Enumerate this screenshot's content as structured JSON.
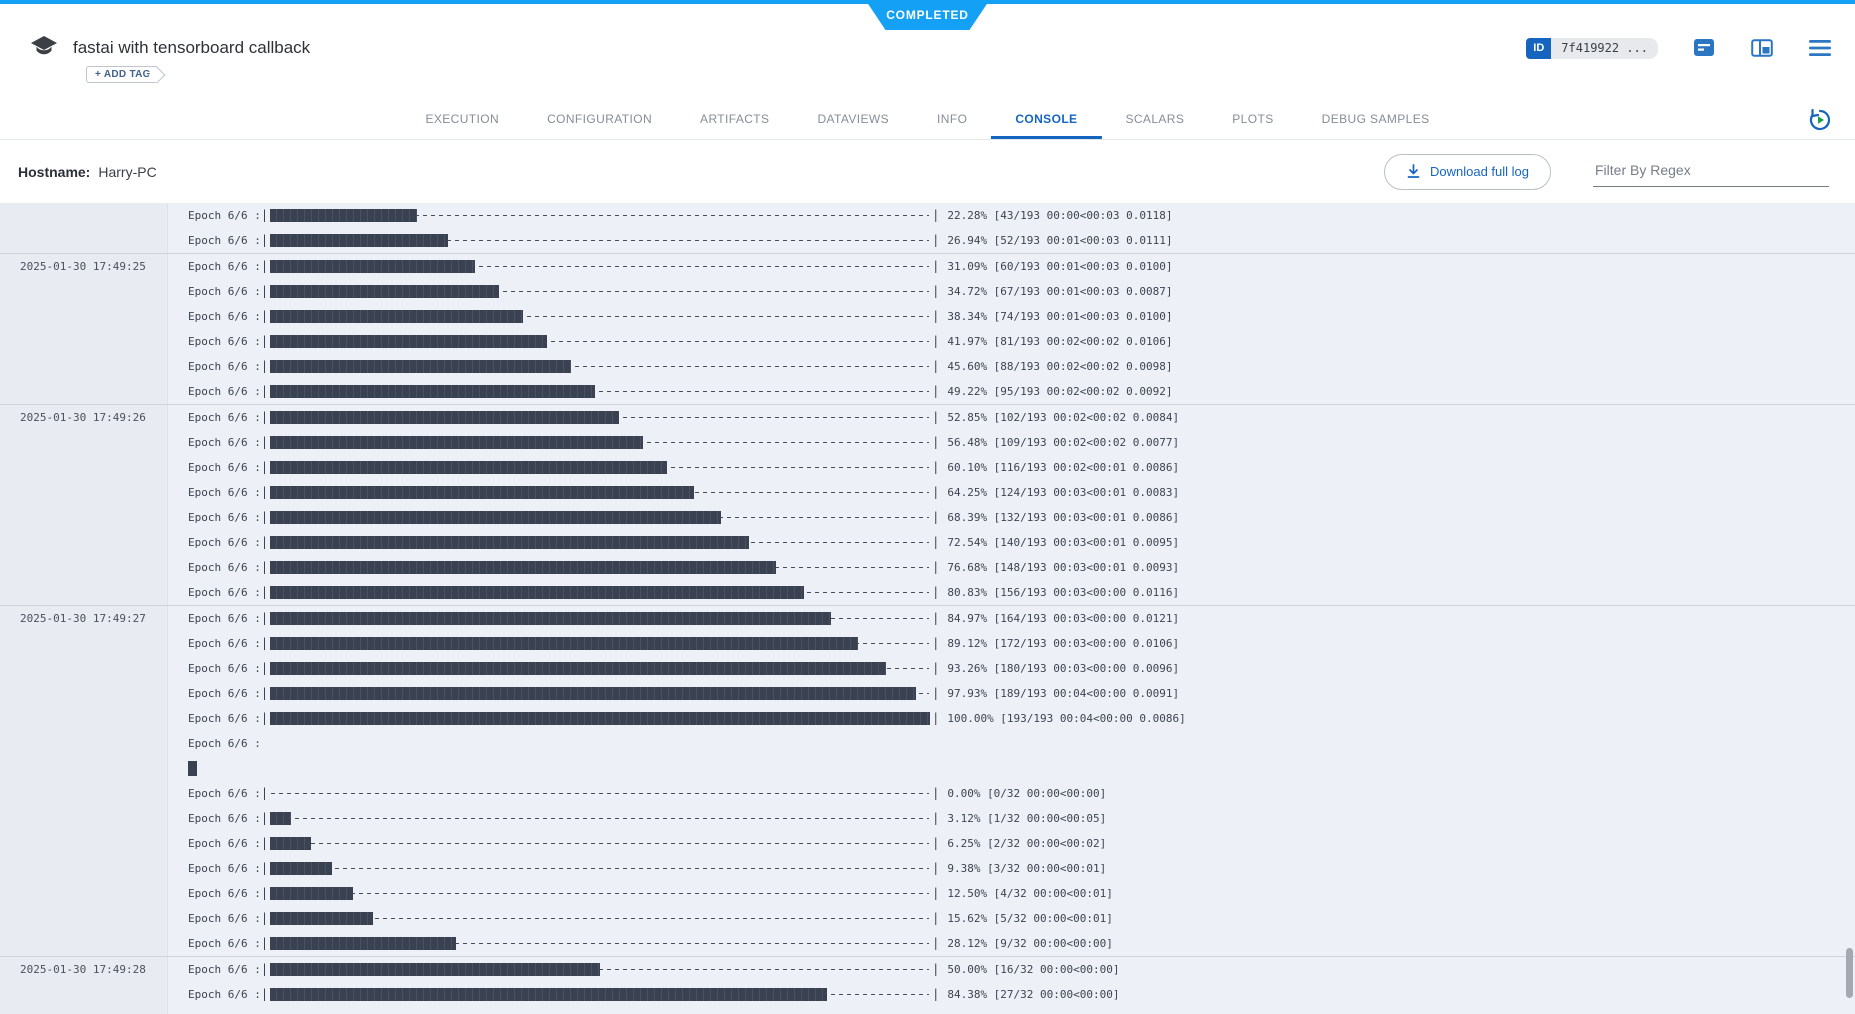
{
  "header": {
    "status": "COMPLETED",
    "title": "fastai with tensorboard callback",
    "add_tag_label": "+ ADD TAG",
    "id_label": "ID",
    "id_value": "7f419922 ...",
    "tabs": [
      {
        "label": "EXECUTION",
        "active": false
      },
      {
        "label": "CONFIGURATION",
        "active": false
      },
      {
        "label": "ARTIFACTS",
        "active": false
      },
      {
        "label": "DATAVIEWS",
        "active": false
      },
      {
        "label": "INFO",
        "active": false
      },
      {
        "label": "CONSOLE",
        "active": true
      },
      {
        "label": "SCALARS",
        "active": false
      },
      {
        "label": "PLOTS",
        "active": false
      },
      {
        "label": "DEBUG SAMPLES",
        "active": false
      }
    ]
  },
  "toolbar": {
    "hostname_label": "Hostname:",
    "hostname_value": "Harry-PC",
    "download_label": "Download full log",
    "filter_placeholder": "Filter By Regex"
  },
  "icons": {
    "logo": "experiment-cap-icon",
    "details": "details-panel-icon",
    "layout": "layout-panel-icon",
    "menu": "hamburger-menu-icon",
    "refresh": "auto-refresh-icon",
    "download": "download-icon"
  },
  "colors": {
    "status_blue": "#14a0f4",
    "accent_blue": "#1565c0",
    "bar_fill": "#3a4150",
    "log_bg": "#edf0f6",
    "gutter_bg": "#e8ebf1",
    "green_play": "#15a04a"
  },
  "console": {
    "groups": [
      {
        "timestamp": "",
        "lines": [
          {
            "kind": "bar",
            "prefix": "Epoch 6/6 : ",
            "pct": 22.28,
            "suffix": "22.28% [43/193 00:00<00:03 0.0118]"
          },
          {
            "kind": "bar",
            "prefix": "Epoch 6/6 : ",
            "pct": 26.94,
            "suffix": "26.94% [52/193 00:01<00:03 0.0111]"
          }
        ]
      },
      {
        "timestamp": "2025-01-30 17:49:25",
        "lines": [
          {
            "kind": "bar",
            "prefix": "Epoch 6/6 : ",
            "pct": 31.09,
            "suffix": "31.09% [60/193 00:01<00:03 0.0100]"
          },
          {
            "kind": "bar",
            "prefix": "Epoch 6/6 : ",
            "pct": 34.72,
            "suffix": "34.72% [67/193 00:01<00:03 0.0087]"
          },
          {
            "kind": "bar",
            "prefix": "Epoch 6/6 : ",
            "pct": 38.34,
            "suffix": "38.34% [74/193 00:01<00:03 0.0100]"
          },
          {
            "kind": "bar",
            "prefix": "Epoch 6/6 : ",
            "pct": 41.97,
            "suffix": "41.97% [81/193 00:02<00:02 0.0106]"
          },
          {
            "kind": "bar",
            "prefix": "Epoch 6/6 : ",
            "pct": 45.6,
            "suffix": "45.60% [88/193 00:02<00:02 0.0098]"
          },
          {
            "kind": "bar",
            "prefix": "Epoch 6/6 : ",
            "pct": 49.22,
            "suffix": "49.22% [95/193 00:02<00:02 0.0092]"
          }
        ]
      },
      {
        "timestamp": "2025-01-30 17:49:26",
        "lines": [
          {
            "kind": "bar",
            "prefix": "Epoch 6/6 : ",
            "pct": 52.85,
            "suffix": "52.85% [102/193 00:02<00:02 0.0084]"
          },
          {
            "kind": "bar",
            "prefix": "Epoch 6/6 : ",
            "pct": 56.48,
            "suffix": "56.48% [109/193 00:02<00:02 0.0077]"
          },
          {
            "kind": "bar",
            "prefix": "Epoch 6/6 : ",
            "pct": 60.1,
            "suffix": "60.10% [116/193 00:02<00:01 0.0086]"
          },
          {
            "kind": "bar",
            "prefix": "Epoch 6/6 : ",
            "pct": 64.25,
            "suffix": "64.25% [124/193 00:03<00:01 0.0083]"
          },
          {
            "kind": "bar",
            "prefix": "Epoch 6/6 : ",
            "pct": 68.39,
            "suffix": "68.39% [132/193 00:03<00:01 0.0086]"
          },
          {
            "kind": "bar",
            "prefix": "Epoch 6/6 : ",
            "pct": 72.54,
            "suffix": "72.54% [140/193 00:03<00:01 0.0095]"
          },
          {
            "kind": "bar",
            "prefix": "Epoch 6/6 : ",
            "pct": 76.68,
            "suffix": "76.68% [148/193 00:03<00:01 0.0093]"
          },
          {
            "kind": "bar",
            "prefix": "Epoch 6/6 : ",
            "pct": 80.83,
            "suffix": "80.83% [156/193 00:03<00:00 0.0116]"
          }
        ]
      },
      {
        "timestamp": "2025-01-30 17:49:27",
        "lines": [
          {
            "kind": "bar",
            "prefix": "Epoch 6/6 : ",
            "pct": 84.97,
            "suffix": "84.97% [164/193 00:03<00:00 0.0121]"
          },
          {
            "kind": "bar",
            "prefix": "Epoch 6/6 : ",
            "pct": 89.12,
            "suffix": "89.12% [172/193 00:03<00:00 0.0106]"
          },
          {
            "kind": "bar",
            "prefix": "Epoch 6/6 : ",
            "pct": 93.26,
            "suffix": "93.26% [180/193 00:03<00:00 0.0096]"
          },
          {
            "kind": "bar",
            "prefix": "Epoch 6/6 : ",
            "pct": 97.93,
            "suffix": "97.93% [189/193 00:04<00:00 0.0091]"
          },
          {
            "kind": "bar",
            "prefix": "Epoch 6/6 : ",
            "pct": 100.0,
            "suffix": "100.00% [193/193 00:04<00:00 0.0086]"
          },
          {
            "kind": "text",
            "prefix": "Epoch 6/6 :"
          },
          {
            "kind": "block"
          },
          {
            "kind": "bar",
            "prefix": "Epoch 6/6 : ",
            "pct": 0.0,
            "suffix": "0.00% [0/32 00:00<00:00]"
          },
          {
            "kind": "bar",
            "prefix": "Epoch 6/6 : ",
            "pct": 3.12,
            "suffix": "3.12% [1/32 00:00<00:05]"
          },
          {
            "kind": "bar",
            "prefix": "Epoch 6/6 : ",
            "pct": 6.25,
            "suffix": "6.25% [2/32 00:00<00:02]"
          },
          {
            "kind": "bar",
            "prefix": "Epoch 6/6 : ",
            "pct": 9.38,
            "suffix": "9.38% [3/32 00:00<00:01]"
          },
          {
            "kind": "bar",
            "prefix": "Epoch 6/6 : ",
            "pct": 12.5,
            "suffix": "12.50% [4/32 00:00<00:01]"
          },
          {
            "kind": "bar",
            "prefix": "Epoch 6/6 : ",
            "pct": 15.62,
            "suffix": "15.62% [5/32 00:00<00:01]"
          },
          {
            "kind": "bar",
            "prefix": "Epoch 6/6 : ",
            "pct": 28.12,
            "suffix": "28.12% [9/32 00:00<00:00]"
          }
        ]
      },
      {
        "timestamp": "2025-01-30 17:49:28",
        "lines": [
          {
            "kind": "bar",
            "prefix": "Epoch 6/6 : ",
            "pct": 50.0,
            "suffix": "50.00% [16/32 00:00<00:00]"
          },
          {
            "kind": "bar",
            "prefix": "Epoch 6/6 : ",
            "pct": 84.38,
            "suffix": "84.38% [27/32 00:00<00:00]"
          }
        ]
      }
    ]
  }
}
